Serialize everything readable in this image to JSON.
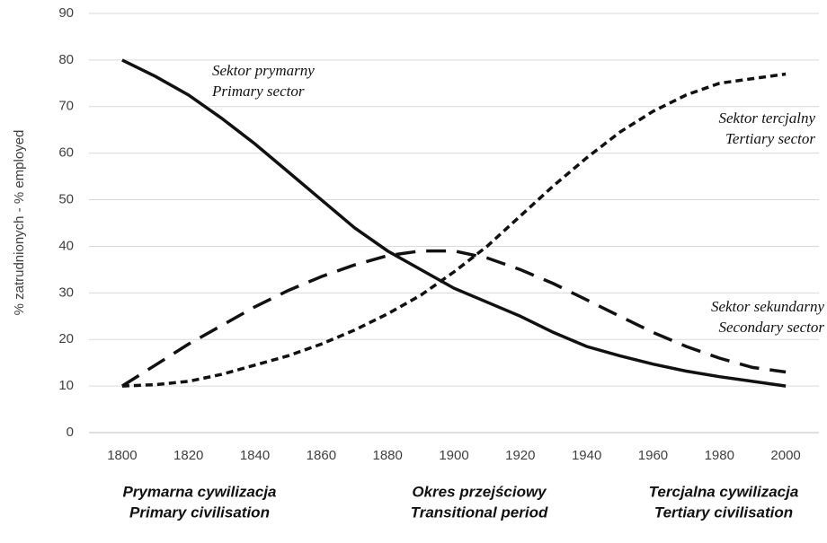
{
  "chart_data": {
    "type": "line",
    "ylabel": "% zatrudnionych - % employed",
    "x": [
      1800,
      1810,
      1820,
      1830,
      1840,
      1850,
      1860,
      1870,
      1880,
      1890,
      1900,
      1910,
      1920,
      1930,
      1940,
      1950,
      1960,
      1970,
      1980,
      1990,
      2000
    ],
    "xlim": [
      1790,
      2010
    ],
    "xticks": [
      1800,
      1820,
      1840,
      1860,
      1880,
      1900,
      1920,
      1940,
      1960,
      1980,
      2000
    ],
    "ylim": [
      0,
      90
    ],
    "yticks": [
      0,
      10,
      20,
      30,
      40,
      50,
      60,
      70,
      80,
      90
    ],
    "grid": true,
    "series": [
      {
        "label": [
          "Sektor prymarny",
          "Primary sector"
        ],
        "color": "#111111",
        "line_style": "solid",
        "values": [
          80,
          76.5,
          72.5,
          67.5,
          62,
          56,
          50,
          44,
          39,
          35,
          31,
          28,
          25,
          21.5,
          18.5,
          16.5,
          14.7,
          13.2,
          12,
          11,
          10
        ]
      },
      {
        "label": [
          "Sektor sekundarny",
          "Secondary sector"
        ],
        "color": "#111111",
        "line_style": "dashed",
        "values": [
          10,
          14.5,
          19,
          23,
          27,
          30.5,
          33.5,
          36,
          38,
          39,
          39,
          37.5,
          35,
          32,
          28.5,
          25,
          21.5,
          18.5,
          16,
          14,
          13
        ]
      },
      {
        "label": [
          "Sektor tercjalny",
          "Tertiary sector"
        ],
        "color": "#111111",
        "line_style": "dotted",
        "values": [
          10,
          10.3,
          11,
          12.5,
          14.5,
          16.5,
          19,
          22,
          25.5,
          29.5,
          34.5,
          40,
          46.5,
          53,
          59,
          64.5,
          69,
          72.5,
          75,
          76,
          77
        ]
      }
    ],
    "periods": [
      [
        "Prymarna cywilizacja",
        "Primary civilisation"
      ],
      [
        "Okres przejściowy",
        "Transitional period"
      ],
      [
        "Tercjalna cywilizacja",
        "Tertiary civilisation"
      ]
    ]
  }
}
